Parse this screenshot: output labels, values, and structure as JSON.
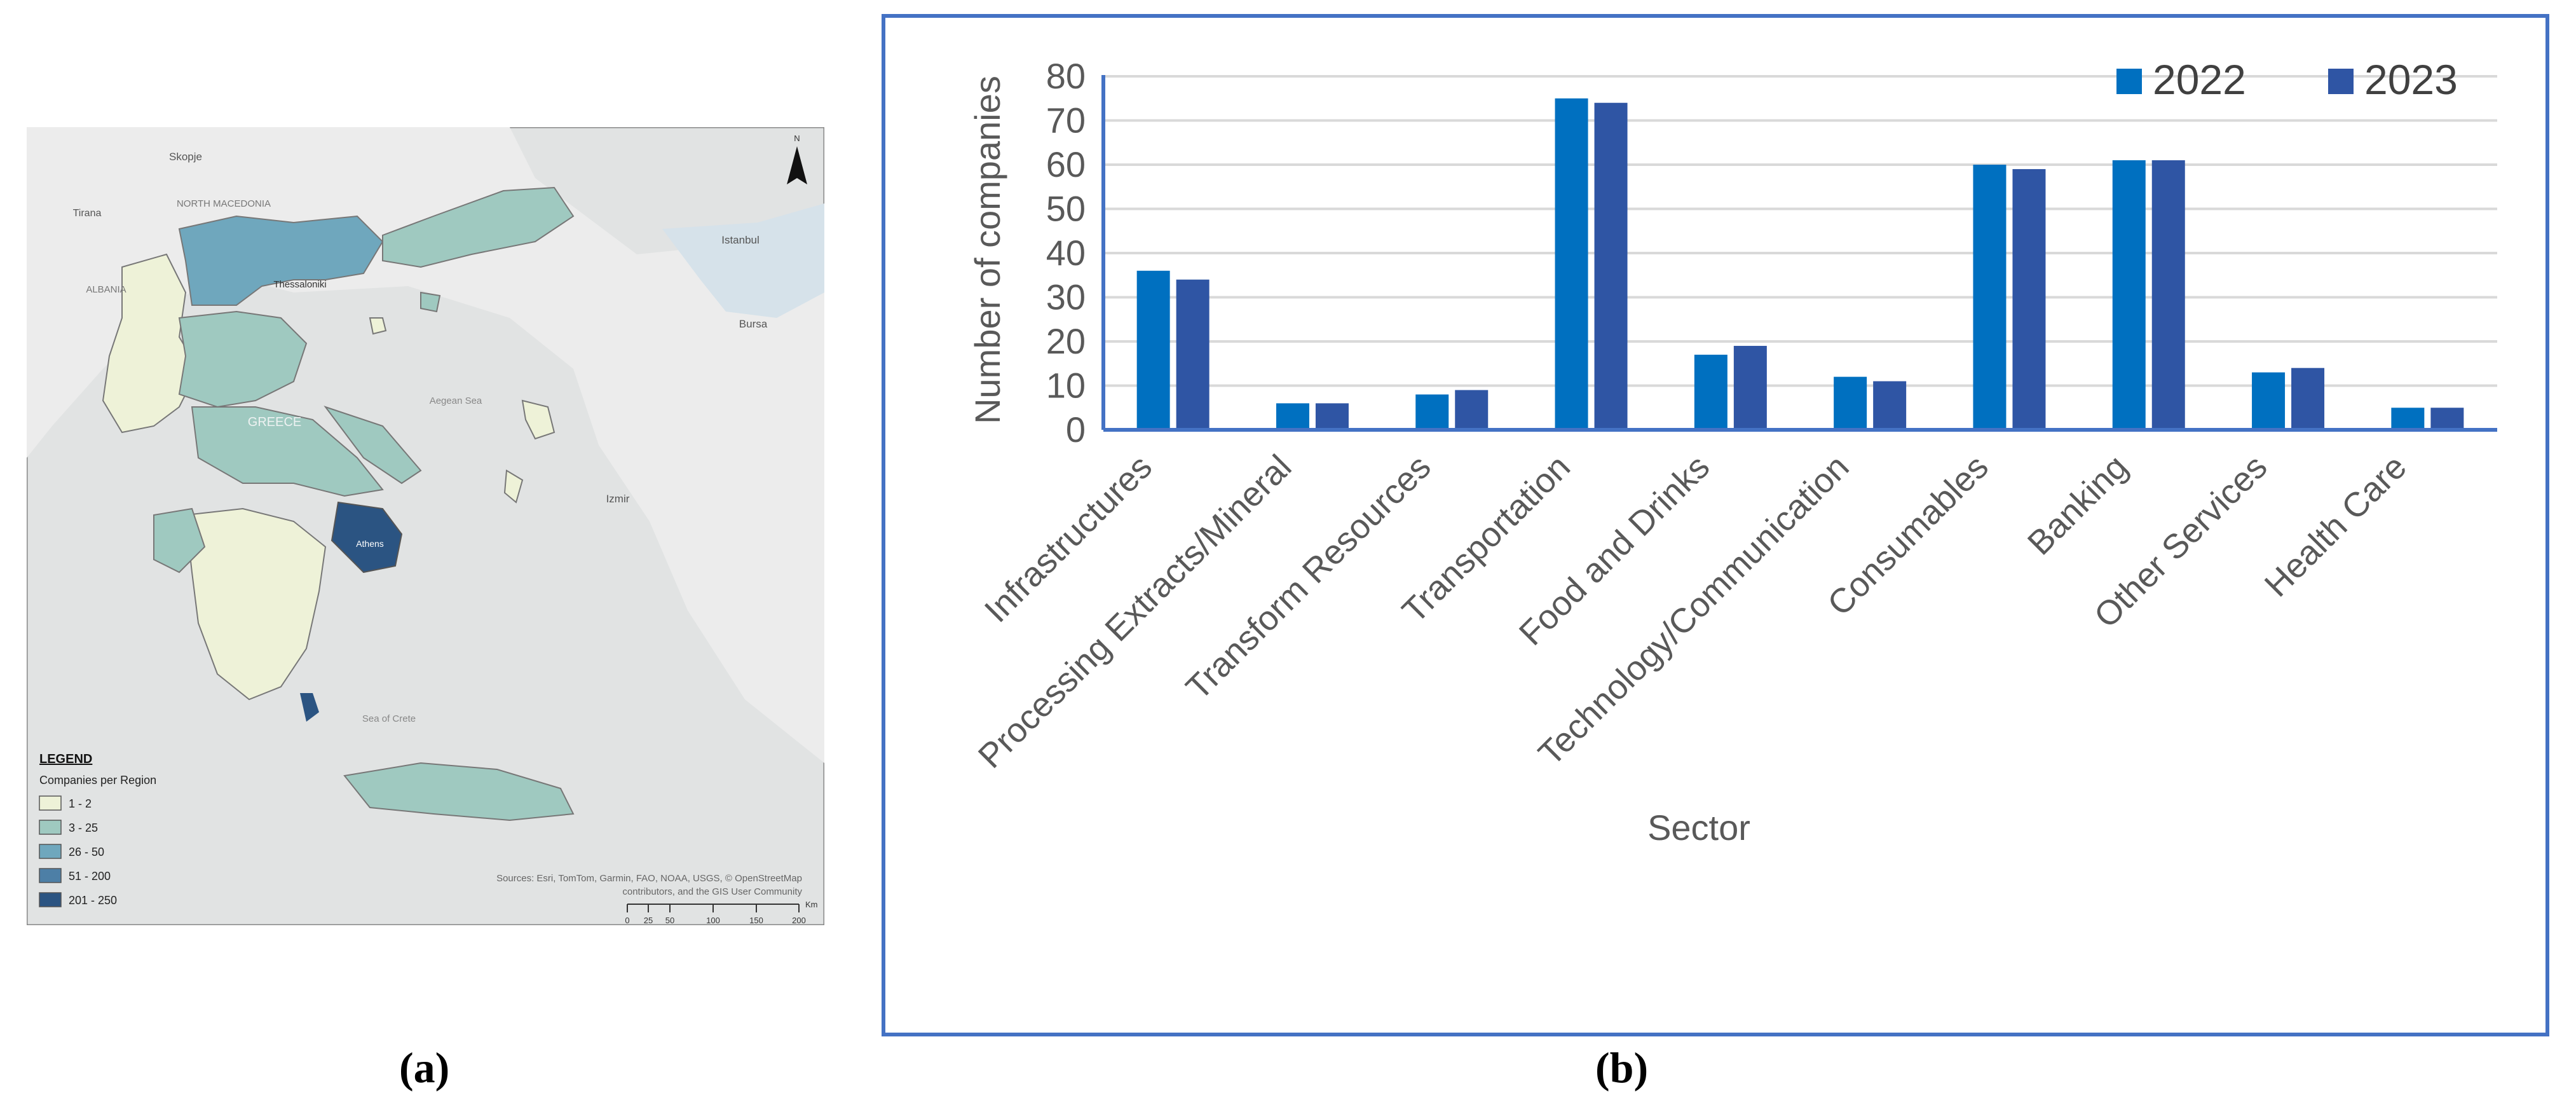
{
  "captions": {
    "left": "(a)",
    "right": "(b)"
  },
  "map": {
    "labels": {
      "skopje": "Skopje",
      "tirana": "Tirana",
      "north_macedonia": "NORTH MACEDONIA",
      "albania": "ALBANIA",
      "istanbul": "Istanbul",
      "bursa": "Bursa",
      "thessaloniki": "Thessaloniki",
      "greece": "GREECE",
      "aegean_sea": "Aegean Sea",
      "izmir": "Izmir",
      "athens": "Athens",
      "sea_of_crete": "Sea of Crete"
    },
    "north_label": "N",
    "legend": {
      "title": "LEGEND",
      "subtitle": "Companies per Region",
      "items": [
        {
          "label": "1 - 2",
          "color": "#eef2d8"
        },
        {
          "label": "3 - 25",
          "color": "#9fc9c0"
        },
        {
          "label": "26 - 50",
          "color": "#6fa7bd"
        },
        {
          "label": "51 - 200",
          "color": "#4d7fa6"
        },
        {
          "label": "201 - 250",
          "color": "#2b5482"
        }
      ]
    },
    "attribution_line1": "Sources: Esri, TomTom, Garmin, FAO, NOAA, USGS, © OpenStreetMap",
    "attribution_line2": "contributors, and the GIS User Community",
    "scale": {
      "ticks": [
        "0",
        "25",
        "50",
        "100",
        "150",
        "200"
      ],
      "unit": "Km"
    }
  },
  "chart_data": {
    "type": "bar",
    "categories": [
      "Infrastructures",
      "Processing Extracts/Mineral",
      "Transform Resources",
      "Transportation",
      "Food and Drinks",
      "Technology/Communication",
      "Consumables",
      "Banking",
      "Other Services",
      "Health Care"
    ],
    "series": [
      {
        "name": "2022",
        "color": "#0070c0",
        "values": [
          36,
          6,
          8,
          75,
          17,
          12,
          60,
          61,
          13,
          5
        ]
      },
      {
        "name": "2023",
        "color": "#2f55a4",
        "values": [
          34,
          6,
          9,
          74,
          19,
          11,
          59,
          61,
          14,
          5
        ]
      }
    ],
    "xlabel": "Sector",
    "ylabel": "Number of companies",
    "ylim": [
      0,
      80
    ],
    "yticks": [
      0,
      10,
      20,
      30,
      40,
      50,
      60,
      70,
      80
    ],
    "grid": true,
    "legend_position": "top-right"
  }
}
